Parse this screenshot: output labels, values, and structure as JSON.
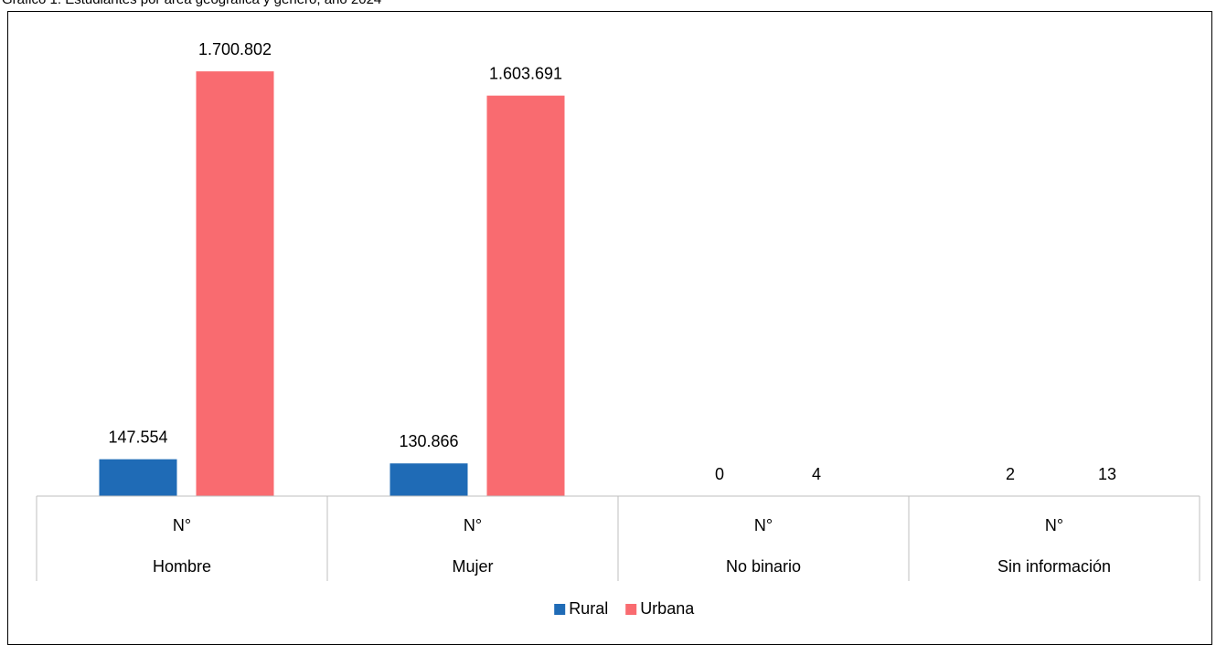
{
  "caption": "Gráfico 1: Estudiantes por área geográfica y género, año 2024",
  "chart_data": {
    "type": "bar",
    "categories": [
      "Hombre",
      "Mujer",
      "No binario",
      "Sin información"
    ],
    "category_sublabel": "N°",
    "series": [
      {
        "name": "Rural",
        "color": "#1f6bb6",
        "values": [
          147554,
          130866,
          0,
          2
        ],
        "labels": [
          "147.554",
          "130.866",
          "0",
          "2"
        ]
      },
      {
        "name": "Urbana",
        "color": "#f96b70",
        "values": [
          1700802,
          1603691,
          4,
          13
        ],
        "labels": [
          "1.700.802",
          "1.603.691",
          "4",
          "13"
        ]
      }
    ],
    "ylim": [
      0,
      1800000
    ],
    "grid": false,
    "legend": "bottom"
  }
}
